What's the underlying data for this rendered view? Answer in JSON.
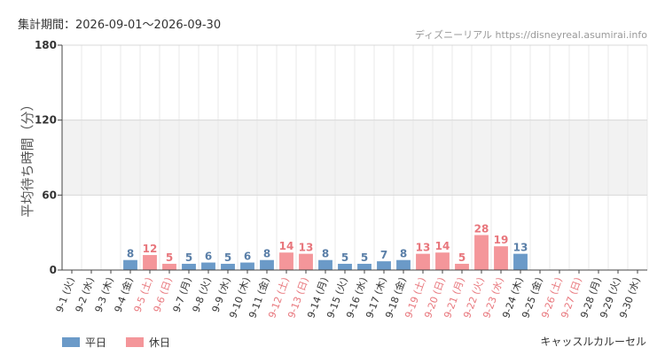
{
  "header": {
    "period_label": "集計期間：2026-09-01～2026-09-30",
    "source": "ディズニーリアル https://disneyreal.asumirai.info"
  },
  "footer": {
    "attraction": "キャッスルカルーセル"
  },
  "colors": {
    "weekday": "#6b9ac8",
    "holiday": "#f4969a",
    "weekday_text": "#5a7fa8",
    "holiday_text": "#e8767c"
  },
  "chart_data": {
    "type": "bar",
    "ylabel": "平均待ち時間（分）",
    "ylim": [
      0,
      180
    ],
    "yticks": [
      0,
      60,
      120,
      180
    ],
    "grid": true,
    "legend_placement": "bottom-left",
    "legend": [
      {
        "key": "weekday",
        "label": "平日"
      },
      {
        "key": "holiday",
        "label": "休日"
      }
    ],
    "categories": [
      "9-1 (火)",
      "9-2 (水)",
      "9-3 (木)",
      "9-4 (金)",
      "9-5 (土)",
      "9-6 (日)",
      "9-7 (月)",
      "9-8 (火)",
      "9-9 (水)",
      "9-10 (木)",
      "9-11 (金)",
      "9-12 (土)",
      "9-13 (日)",
      "9-14 (月)",
      "9-15 (火)",
      "9-16 (水)",
      "9-17 (木)",
      "9-18 (金)",
      "9-19 (土)",
      "9-20 (日)",
      "9-21 (月)",
      "9-22 (火)",
      "9-23 (水)",
      "9-24 (木)",
      "9-25 (金)",
      "9-26 (土)",
      "9-27 (日)",
      "9-28 (月)",
      "9-29 (火)",
      "9-30 (水)"
    ],
    "values": [
      null,
      null,
      null,
      8,
      12,
      5,
      5,
      6,
      5,
      6,
      8,
      14,
      13,
      8,
      5,
      5,
      7,
      8,
      13,
      14,
      5,
      28,
      19,
      13,
      null,
      null,
      null,
      null,
      null,
      null
    ],
    "day_type": [
      "weekday",
      "weekday",
      "weekday",
      "weekday",
      "holiday",
      "holiday",
      "weekday",
      "weekday",
      "weekday",
      "weekday",
      "weekday",
      "holiday",
      "holiday",
      "weekday",
      "weekday",
      "weekday",
      "weekday",
      "weekday",
      "holiday",
      "holiday",
      "holiday",
      "holiday",
      "holiday",
      "weekday",
      "weekday",
      "holiday",
      "holiday",
      "weekday",
      "weekday",
      "weekday"
    ]
  }
}
